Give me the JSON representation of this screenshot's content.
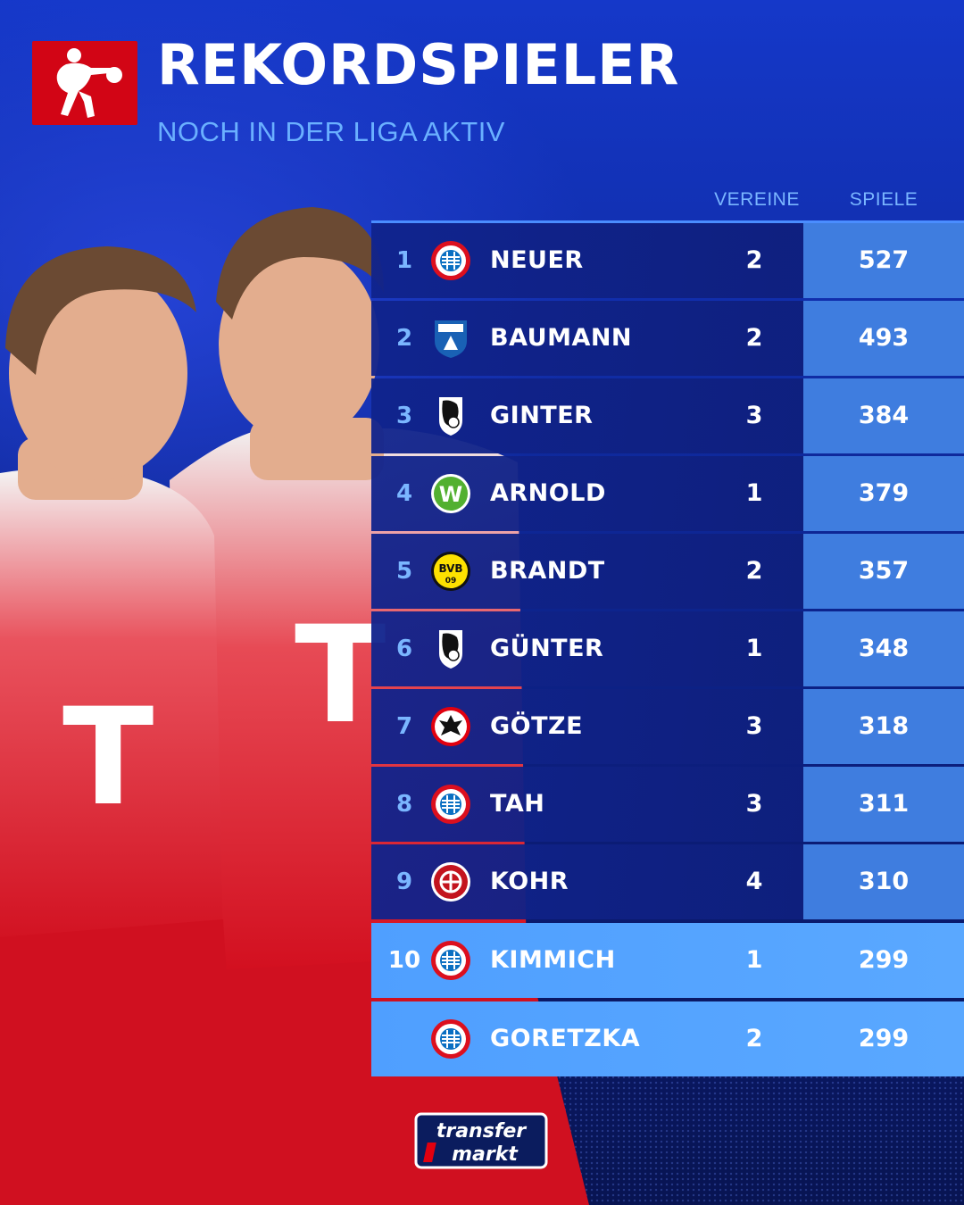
{
  "header": {
    "title": "REKORDSPIELER",
    "subtitle": "NOCH IN DER LIGA AKTIV"
  },
  "table": {
    "columns": {
      "vereine": "VEREINE",
      "spiele": "SPIELE"
    },
    "rows": [
      {
        "rank": "1",
        "name": "NEUER",
        "club_icon": "bayern-crest-icon",
        "vereine": "2",
        "spiele": "527"
      },
      {
        "rank": "2",
        "name": "BAUMANN",
        "club_icon": "hoffenheim-crest-icon",
        "vereine": "2",
        "spiele": "493"
      },
      {
        "rank": "3",
        "name": "GINTER",
        "club_icon": "freiburg-crest-icon",
        "vereine": "3",
        "spiele": "384"
      },
      {
        "rank": "4",
        "name": "ARNOLD",
        "club_icon": "wolfsburg-crest-icon",
        "vereine": "1",
        "spiele": "379"
      },
      {
        "rank": "5",
        "name": "BRANDT",
        "club_icon": "dortmund-crest-icon",
        "vereine": "2",
        "spiele": "357"
      },
      {
        "rank": "6",
        "name": "GÜNTER",
        "club_icon": "freiburg-crest-icon",
        "vereine": "1",
        "spiele": "348"
      },
      {
        "rank": "7",
        "name": "GÖTZE",
        "club_icon": "frankfurt-crest-icon",
        "vereine": "3",
        "spiele": "318"
      },
      {
        "rank": "8",
        "name": "TAH",
        "club_icon": "bayern-crest-icon",
        "vereine": "3",
        "spiele": "311"
      },
      {
        "rank": "9",
        "name": "KOHR",
        "club_icon": "mainz-crest-icon",
        "vereine": "4",
        "spiele": "310"
      },
      {
        "rank": "10",
        "name": "KIMMICH",
        "club_icon": "bayern-crest-icon",
        "vereine": "1",
        "spiele": "299",
        "highlight": true
      },
      {
        "rank": "",
        "name": "GORETZKA",
        "club_icon": "bayern-crest-icon",
        "vereine": "2",
        "spiele": "299",
        "highlight": true
      }
    ]
  },
  "crest_text": {
    "bvb_top": "BVB",
    "bvb_bottom": "09",
    "wolfsburg": "W"
  },
  "footer": {
    "logo_line1": "transfer",
    "logo_line2": "markt"
  },
  "colors": {
    "background": "#0f2aa0",
    "accent_blue": "#4f9fff",
    "bundesliga_red": "#d20515",
    "bayern_red": "#dc0f1e"
  }
}
